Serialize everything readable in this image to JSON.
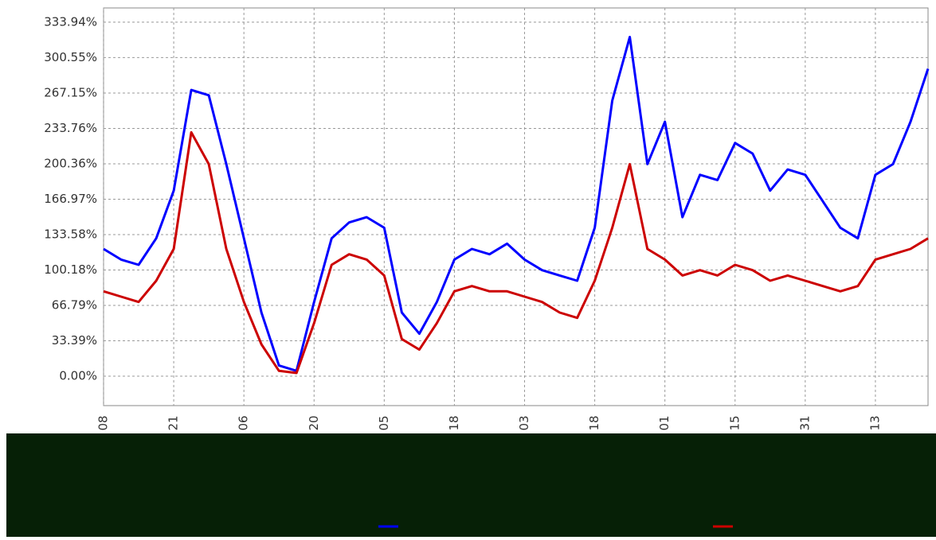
{
  "chart_data": {
    "type": "line",
    "categories": [
      "08",
      null,
      null,
      null,
      "21",
      null,
      null,
      null,
      "06",
      null,
      null,
      null,
      "20",
      null,
      null,
      null,
      "05",
      null,
      null,
      null,
      "18",
      null,
      null,
      null,
      "03",
      null,
      null,
      null,
      "18",
      null,
      null,
      null,
      "01",
      null,
      null,
      null,
      "15",
      null,
      null,
      null,
      "31",
      null,
      null,
      null,
      "13",
      null,
      null,
      null
    ],
    "series": [
      {
        "color": "#0000ff",
        "values": [
          120,
          110,
          105,
          130,
          175,
          270,
          265,
          200,
          130,
          60,
          10,
          5,
          70,
          130,
          145,
          150,
          140,
          60,
          40,
          70,
          110,
          120,
          115,
          125,
          110,
          100,
          95,
          90,
          140,
          260,
          320,
          200,
          240,
          150,
          190,
          185,
          220,
          210,
          175,
          195,
          190,
          165,
          140,
          130,
          190,
          200,
          240,
          290
        ]
      },
      {
        "color": "#cc0000",
        "values": [
          80,
          75,
          70,
          90,
          120,
          230,
          200,
          120,
          70,
          30,
          5,
          3,
          50,
          105,
          115,
          110,
          95,
          35,
          25,
          50,
          80,
          85,
          80,
          80,
          75,
          70,
          60,
          55,
          90,
          140,
          200,
          120,
          110,
          95,
          100,
          95,
          105,
          100,
          90,
          95,
          90,
          85,
          80,
          85,
          110,
          115,
          120,
          130
        ]
      }
    ],
    "ylim": [
      -27.8,
      347.4
    ],
    "yticks": [
      {
        "value": 0,
        "label": "0.00%"
      },
      {
        "value": 33.39,
        "label": "33.39%"
      },
      {
        "value": 66.79,
        "label": "66.79%"
      },
      {
        "value": 100.18,
        "label": "100.18%"
      },
      {
        "value": 133.58,
        "label": "133.58%"
      },
      {
        "value": 166.97,
        "label": "166.97%"
      },
      {
        "value": 200.36,
        "label": "200.36%"
      },
      {
        "value": 233.76,
        "label": "233.76%"
      },
      {
        "value": 267.15,
        "label": "267.15%"
      },
      {
        "value": 300.55,
        "label": "300.55%"
      },
      {
        "value": 333.94,
        "label": "333.94%"
      }
    ],
    "grid": true
  }
}
